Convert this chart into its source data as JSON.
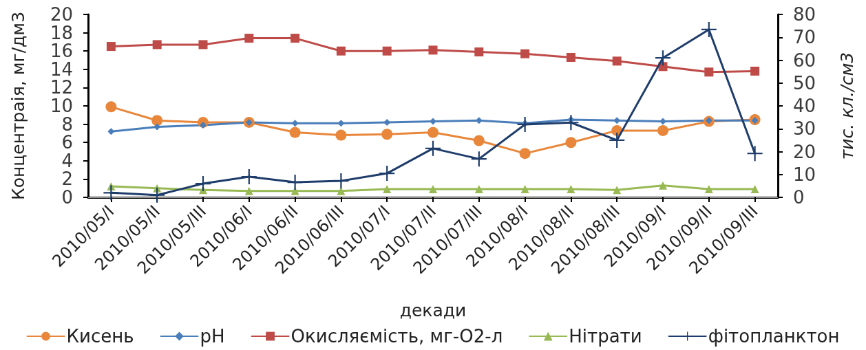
{
  "chart_data": {
    "type": "line",
    "categories": [
      "2010/05/I",
      "2010/05/II",
      "2010/05/III",
      "2010/06/I",
      "2010/06/II",
      "2010/06/III",
      "2010/07/I",
      "2010/07/II",
      "2010/07/III",
      "2010/08/I",
      "2010/08/II",
      "2010/08/III",
      "2010/09/I",
      "2010/09/II",
      "2010/09/III"
    ],
    "xlabel": "декади",
    "ylabel": "Концентраія, мг/дм3",
    "y2label": "тис. кл./см3",
    "ylim": [
      0,
      20
    ],
    "yticks": [
      0,
      2,
      4,
      6,
      8,
      10,
      12,
      14,
      16,
      18,
      20
    ],
    "y2lim": [
      0,
      80
    ],
    "y2ticks": [
      0,
      10,
      20,
      30,
      40,
      50,
      60,
      70,
      80
    ],
    "grid": false,
    "legend": "bottom",
    "series": [
      {
        "name": "Кисень",
        "color": "#e8873b",
        "marker": "circle",
        "values": [
          9.9,
          8.4,
          8.2,
          8.2,
          7.1,
          6.8,
          6.9,
          7.1,
          6.2,
          4.8,
          6.0,
          7.3,
          7.3,
          8.3,
          8.5
        ]
      },
      {
        "name": "pH",
        "color": "#4a7ebb",
        "marker": "diamond",
        "values": [
          7.2,
          7.7,
          7.9,
          8.2,
          8.1,
          8.1,
          8.2,
          8.3,
          8.4,
          8.1,
          8.5,
          8.4,
          8.3,
          8.4,
          8.4
        ]
      },
      {
        "name": "Окисляємість, мг-О2-л",
        "color": "#be4b48",
        "marker": "square",
        "values": [
          16.5,
          16.7,
          16.7,
          17.4,
          17.4,
          16.0,
          16.0,
          16.1,
          15.9,
          15.7,
          15.3,
          14.9,
          14.3,
          13.7,
          13.8
        ]
      },
      {
        "name": "Нітрати",
        "color": "#98b954",
        "marker": "triangle",
        "values": [
          1.2,
          1.0,
          0.8,
          0.7,
          0.7,
          0.7,
          0.9,
          0.9,
          0.9,
          0.9,
          0.9,
          0.8,
          1.3,
          0.9,
          0.9
        ]
      },
      {
        "name": "фітопланктон",
        "color": "#1f3d6b",
        "marker": "cross",
        "axis": "y2",
        "values": [
          2,
          1,
          6,
          9,
          6.6,
          7.2,
          10.5,
          21.4,
          16.8,
          31.9,
          32.7,
          25,
          61,
          73.4,
          19.2
        ]
      }
    ]
  }
}
